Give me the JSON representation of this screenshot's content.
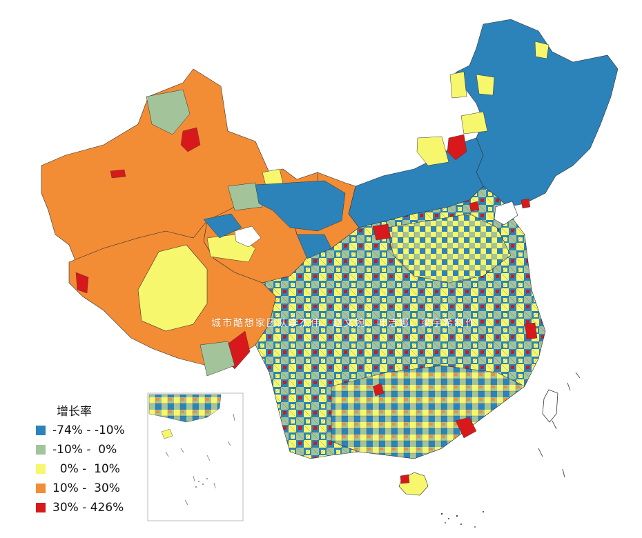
{
  "map": {
    "legend": {
      "title": "增长率",
      "items": [
        {
          "label": "-74% - -10%",
          "color": "#2b83ba"
        },
        {
          "label": "-10% -  0%",
          "color": "#a3c49a"
        },
        {
          "label": "  0% -  10%",
          "color": "#f7f76d"
        },
        {
          "label": "10% -  30%",
          "color": "#f28c35"
        },
        {
          "label": "30% - 426%",
          "color": "#d7191c"
        }
      ]
    },
    "watermark": "城市酷想家团队李杰伟、赵文婉、叶洁娜、梁宇希制作"
  }
}
